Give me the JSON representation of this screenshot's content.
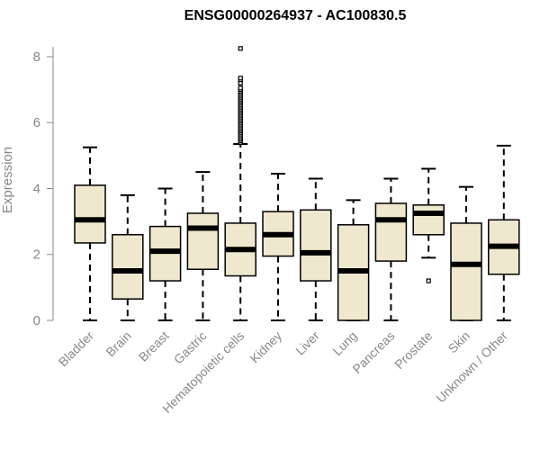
{
  "chart_data": {
    "type": "boxplot",
    "title": "ENSG00000264937 - AC100830.5",
    "ylabel": "Expression",
    "ylim": [
      0,
      8.3
    ],
    "yticks": [
      0,
      2,
      4,
      6,
      8
    ],
    "grid": false,
    "colors": {
      "box_fill": "#efe8cf",
      "box_stroke": "#000000",
      "median": "#000000",
      "axis": "#888888"
    },
    "categories": [
      "Bladder",
      "Brain",
      "Breast",
      "Gastric",
      "Hematopoietic cells",
      "Kidney",
      "Liver",
      "Lung",
      "Pancreas",
      "Prostate",
      "Skin",
      "Unknown / Other"
    ],
    "boxes": [
      {
        "label": "Bladder",
        "min": 0,
        "q1": 2.35,
        "median": 3.05,
        "q3": 4.1,
        "max": 5.25,
        "outliers": []
      },
      {
        "label": "Brain",
        "min": 0,
        "q1": 0.65,
        "median": 1.5,
        "q3": 2.6,
        "max": 3.8,
        "outliers": []
      },
      {
        "label": "Breast",
        "min": 0,
        "q1": 1.2,
        "median": 2.1,
        "q3": 2.85,
        "max": 4.0,
        "outliers": []
      },
      {
        "label": "Gastric",
        "min": 0,
        "q1": 1.55,
        "median": 2.8,
        "q3": 3.25,
        "max": 4.5,
        "outliers": []
      },
      {
        "label": "Hematopoietic cells",
        "min": 0,
        "q1": 1.35,
        "median": 2.15,
        "q3": 2.95,
        "max": 5.35,
        "outliers": [
          5.4,
          5.45,
          5.5,
          5.55,
          5.6,
          5.65,
          5.7,
          5.75,
          5.8,
          5.85,
          5.9,
          5.95,
          6.0,
          6.05,
          6.1,
          6.15,
          6.2,
          6.25,
          6.3,
          6.35,
          6.4,
          6.45,
          6.5,
          6.55,
          6.6,
          6.65,
          6.7,
          6.75,
          6.8,
          6.85,
          6.9,
          6.95,
          7.0,
          7.05,
          7.2,
          7.3,
          7.35,
          8.25
        ]
      },
      {
        "label": "Kidney",
        "min": 0,
        "q1": 1.95,
        "median": 2.6,
        "q3": 3.3,
        "max": 4.45,
        "outliers": []
      },
      {
        "label": "Liver",
        "min": 0,
        "q1": 1.2,
        "median": 2.05,
        "q3": 3.35,
        "max": 4.3,
        "outliers": []
      },
      {
        "label": "Lung",
        "min": 0,
        "q1": 0,
        "median": 1.5,
        "q3": 2.9,
        "max": 3.65,
        "outliers": []
      },
      {
        "label": "Pancreas",
        "min": 0,
        "q1": 1.8,
        "median": 3.05,
        "q3": 3.55,
        "max": 4.3,
        "outliers": []
      },
      {
        "label": "Prostate",
        "min": 1.9,
        "q1": 2.6,
        "median": 3.25,
        "q3": 3.5,
        "max": 4.6,
        "outliers": [
          1.2
        ]
      },
      {
        "label": "Skin",
        "min": 0,
        "q1": 0,
        "median": 1.7,
        "q3": 2.95,
        "max": 4.05,
        "outliers": []
      },
      {
        "label": "Unknown / Other",
        "min": 0,
        "q1": 1.4,
        "median": 2.25,
        "q3": 3.05,
        "max": 5.3,
        "outliers": []
      }
    ]
  }
}
